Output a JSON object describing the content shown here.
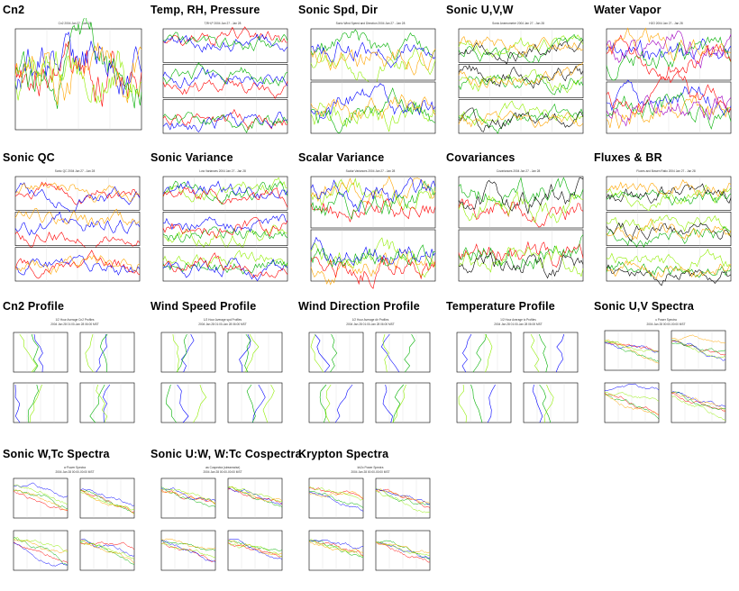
{
  "thumbnails": [
    {
      "title": "Cn2",
      "kind": "single",
      "caption": "Cn2 2004 Jan 27 - Jan 28",
      "colors": [
        "#ff0000",
        "#00b000",
        "#0000ff",
        "#ffa500",
        "#90ee00"
      ]
    },
    {
      "title": "Temp, RH, Pressure",
      "kind": "panels3",
      "caption": "T,RH,P 2004 Jan 27 - Jan 28",
      "colors": [
        "#ff0000",
        "#0000ff",
        "#00b000"
      ]
    },
    {
      "title": "Sonic Spd, Dir",
      "kind": "panels2",
      "caption": "Sonic Wind Speed and Direction 2004 Jan 27 - Jan 28",
      "colors": [
        "#90ee00",
        "#00b000",
        "#0000ff",
        "#ffa500"
      ]
    },
    {
      "title": "Sonic U,V,W",
      "kind": "panels3",
      "caption": "Sonic Anemometer 2004 Jan 27 - Jan 28",
      "colors": [
        "#90ee00",
        "#00b000",
        "#000000",
        "#ffa500"
      ]
    },
    {
      "title": "Water Vapor",
      "kind": "panels2",
      "caption": "H2O 2004 Jan 27 - Jan 28",
      "colors": [
        "#0000ff",
        "#00b000",
        "#ff0000",
        "#ffa500",
        "#a000c0"
      ]
    },
    {
      "title": "Sonic QC",
      "kind": "panels3",
      "caption": "Sonic QC 2004 Jan 27 - Jan 28",
      "colors": [
        "#ff0000",
        "#0000ff",
        "#ffa500"
      ]
    },
    {
      "title": "Sonic Variance",
      "kind": "panels3",
      "caption": "Low Variances 2004 Jan 27 - Jan 28",
      "colors": [
        "#90ee00",
        "#00b000",
        "#0000ff",
        "#ff0000"
      ]
    },
    {
      "title": "Scalar Variance",
      "kind": "panels2",
      "caption": "Scalar Variances 2004 Jan 27 - Jan 28",
      "colors": [
        "#90ee00",
        "#ffa500",
        "#0000ff",
        "#ff0000",
        "#00b000"
      ]
    },
    {
      "title": "Covariances",
      "kind": "panels2",
      "caption": "Covariances 2004 Jan 27 - Jan 28",
      "colors": [
        "#ff0000",
        "#00b000",
        "#90ee00",
        "#000000"
      ]
    },
    {
      "title": "Fluxes & BR",
      "kind": "panels3",
      "caption": "Fluxes and Bowen Ratio 2004 Jan 27 - Jan 28",
      "colors": [
        "#90ee00",
        "#00b000",
        "#000000",
        "#ffa500"
      ]
    },
    {
      "title": "Cn2 Profile",
      "kind": "profile",
      "caption": "1/2 Hour Average Cn2 Profiles",
      "subcaption": "2004 Jan 28 01:00-Jan 28 06:00 MST",
      "colors": [
        "#0000ff",
        "#00b000",
        "#90ee00"
      ]
    },
    {
      "title": "Wind Speed Profile",
      "kind": "profile",
      "caption": "1/2 Hour Average spd Profiles",
      "subcaption": "2004 Jan 28 01:00-Jan 28 06:00 MST",
      "colors": [
        "#0000ff",
        "#00b000",
        "#90ee00"
      ]
    },
    {
      "title": "Wind Direction Profile",
      "kind": "profile",
      "caption": "1/2 Hour Average dir Profiles",
      "subcaption": "2004 Jan 28 01:00-Jan 28 06:00 MST",
      "colors": [
        "#0000ff",
        "#00b000",
        "#90ee00"
      ]
    },
    {
      "title": "Temperature Profile",
      "kind": "profile",
      "caption": "1/2 Hour Average tc Profiles",
      "subcaption": "2004 Jan 28 01:00-Jan 28 06:00 MST",
      "colors": [
        "#0000ff",
        "#00b000",
        "#90ee00"
      ]
    },
    {
      "title": "Sonic U,V Spectra",
      "kind": "spectra",
      "caption": "u Power Spectra",
      "subcaption": "2004 Jan 28 00:00-00:00 MST",
      "colors": [
        "#ff0000",
        "#00b000",
        "#0000ff",
        "#ffa500",
        "#90ee00"
      ]
    },
    {
      "title": "Sonic W,Tc Spectra",
      "kind": "spectra",
      "caption": "w Power Spectra",
      "subcaption": "2004 Jan 28 00:00-00:00 MST",
      "colors": [
        "#ff0000",
        "#00b000",
        "#0000ff",
        "#ffa500",
        "#90ee00"
      ]
    },
    {
      "title": "Sonic U:W, W:Tc Cospectra",
      "kind": "spectra",
      "caption": "uw Cospectra (streamwise)",
      "subcaption": "2004 Jan 28 00:00-00:00 MST",
      "colors": [
        "#ff0000",
        "#00b000",
        "#0000ff",
        "#ffa500",
        "#90ee00"
      ]
    },
    {
      "title": "Krypton Spectra",
      "kind": "spectra",
      "caption": "kh2o Power Spectra",
      "subcaption": "2004 Jan 28 00:00-00:00 MST",
      "colors": [
        "#ff0000",
        "#00b000",
        "#0000ff",
        "#ffa500",
        "#90ee00"
      ]
    }
  ]
}
